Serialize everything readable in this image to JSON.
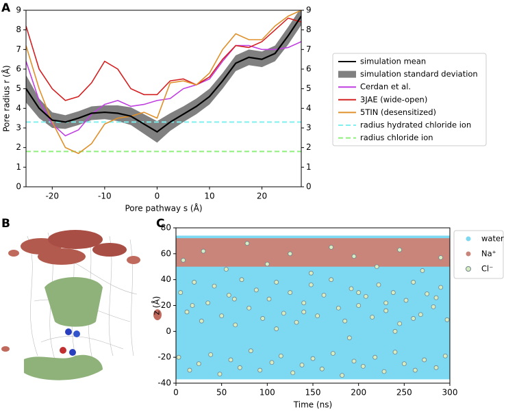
{
  "chart_data": [
    {
      "type": "line",
      "panel_label": "A",
      "xlabel": "Pore pathway s (Å)",
      "ylabel": "Pore radius r (Å)",
      "xlim": [
        -25,
        27.5
      ],
      "xticks": [
        -20,
        -10,
        0,
        10,
        20
      ],
      "ylim": [
        0,
        9
      ],
      "yticks": [
        0,
        1,
        2,
        3,
        4,
        5,
        6,
        7,
        8,
        9
      ],
      "y2lim": [
        0,
        9
      ],
      "y2ticks": [
        0,
        1,
        2,
        3,
        4,
        5,
        6,
        7,
        8,
        9
      ],
      "x": [
        -25,
        -22.5,
        -20,
        -17.5,
        -15,
        -12.5,
        -10,
        -7.5,
        -5,
        -2.5,
        0,
        2.5,
        5,
        7.5,
        10,
        12.5,
        15,
        17.5,
        20,
        22.5,
        25,
        27.5
      ],
      "series": [
        {
          "name": "simulation mean",
          "color": "#000000",
          "values": [
            5.0,
            4.0,
            3.4,
            3.3,
            3.5,
            3.75,
            3.8,
            3.75,
            3.6,
            3.2,
            2.8,
            3.3,
            3.7,
            4.1,
            4.6,
            5.4,
            6.3,
            6.6,
            6.5,
            6.8,
            7.7,
            8.7
          ]
        },
        {
          "name": "simulation standard deviation",
          "color": "#808080",
          "values": [
            0.7,
            0.5,
            0.4,
            0.35,
            0.35,
            0.35,
            0.35,
            0.4,
            0.45,
            0.5,
            0.55,
            0.45,
            0.4,
            0.4,
            0.4,
            0.4,
            0.4,
            0.4,
            0.4,
            0.4,
            0.45,
            0.45
          ]
        },
        {
          "name": "Cerdan et al.",
          "color": "#bf3fe0",
          "values": [
            6.4,
            4.4,
            3.2,
            2.6,
            2.9,
            3.7,
            4.2,
            4.4,
            4.1,
            4.2,
            4.4,
            4.5,
            5.0,
            5.2,
            5.5,
            6.4,
            7.2,
            7.2,
            7.0,
            7.0,
            7.1,
            7.4
          ]
        },
        {
          "name": "3JAE (wide-open)",
          "color": "#d42020",
          "values": [
            8.2,
            6.0,
            5.0,
            4.4,
            4.6,
            5.3,
            6.4,
            6.0,
            5.0,
            4.7,
            4.7,
            5.4,
            5.5,
            5.2,
            5.6,
            6.5,
            7.2,
            7.1,
            7.4,
            8.0,
            8.6,
            8.4
          ]
        },
        {
          "name": "5TIN (desensitized)",
          "color": "#e0902a",
          "values": [
            7.2,
            5.0,
            3.3,
            2.0,
            1.7,
            2.2,
            3.2,
            3.5,
            3.6,
            3.8,
            3.5,
            5.3,
            5.4,
            5.2,
            5.8,
            7.0,
            7.8,
            7.5,
            7.5,
            8.2,
            8.7,
            9.0
          ]
        }
      ],
      "hlines": [
        {
          "name": "radius hydrated chloride ion",
          "color": "#7ff0f0",
          "value": 3.3
        },
        {
          "name": "radius chloride ion",
          "color": "#8cf07a",
          "value": 1.8
        }
      ]
    },
    {
      "type": "image",
      "panel_label": "B"
    },
    {
      "type": "scatter",
      "panel_label": "C",
      "xlabel": "Time (ns)",
      "ylabel": "z (Å)",
      "xlim": [
        0,
        300
      ],
      "xticks": [
        0,
        50,
        100,
        150,
        200,
        250,
        300
      ],
      "ylim": [
        -40,
        80
      ],
      "yticks": [
        -40,
        -20,
        0,
        20,
        40,
        60,
        80
      ],
      "regions": [
        {
          "name": "water",
          "color": "#7dd8f2",
          "x": [
            0,
            300
          ],
          "low": [
            -37,
            -37
          ],
          "high": [
            74,
            74
          ]
        },
        {
          "name": "Na⁺",
          "color": "#c9857a",
          "x": [
            0,
            300
          ],
          "low": [
            50,
            50
          ],
          "high": [
            72,
            72
          ]
        }
      ],
      "series": [
        {
          "name": "Cl⁻",
          "color": "#d8ecc0",
          "x": [
            5,
            12,
            20,
            28,
            35,
            42,
            50,
            58,
            65,
            72,
            80,
            88,
            95,
            102,
            110,
            118,
            125,
            132,
            140,
            148,
            155,
            162,
            170,
            178,
            185,
            192,
            200,
            208,
            215,
            222,
            230,
            238,
            245,
            252,
            260,
            268,
            275,
            282,
            290,
            297,
            3,
            15,
            25,
            38,
            48,
            60,
            70,
            82,
            92,
            105,
            115,
            128,
            138,
            150,
            160,
            172,
            182,
            195,
            205,
            218,
            228,
            240,
            250,
            262,
            272,
            285,
            295,
            110,
            190,
            240,
            8,
            30,
            55,
            78,
            100,
            125,
            148,
            170,
            195,
            220,
            245,
            270,
            290,
            18,
            64,
            140,
            200,
            230,
            260,
            285
          ],
          "values": [
            30,
            15,
            38,
            8,
            22,
            35,
            12,
            28,
            5,
            40,
            18,
            32,
            10,
            25,
            38,
            14,
            30,
            7,
            22,
            36,
            12,
            28,
            40,
            18,
            8,
            33,
            20,
            27,
            11,
            36,
            16,
            30,
            6,
            24,
            38,
            13,
            29,
            19,
            34,
            9,
            -20,
            -30,
            -25,
            -18,
            -33,
            -22,
            -28,
            -15,
            -30,
            -24,
            -19,
            -32,
            -26,
            -21,
            -29,
            -17,
            -34,
            -23,
            -27,
            -20,
            -31,
            -16,
            -25,
            -30,
            -22,
            -28,
            -19,
            2,
            -5,
            0,
            55,
            62,
            48,
            68,
            52,
            60,
            45,
            65,
            58,
            50,
            63,
            47,
            57,
            20,
            25,
            15,
            30,
            22,
            10,
            26
          ]
        }
      ]
    }
  ]
}
